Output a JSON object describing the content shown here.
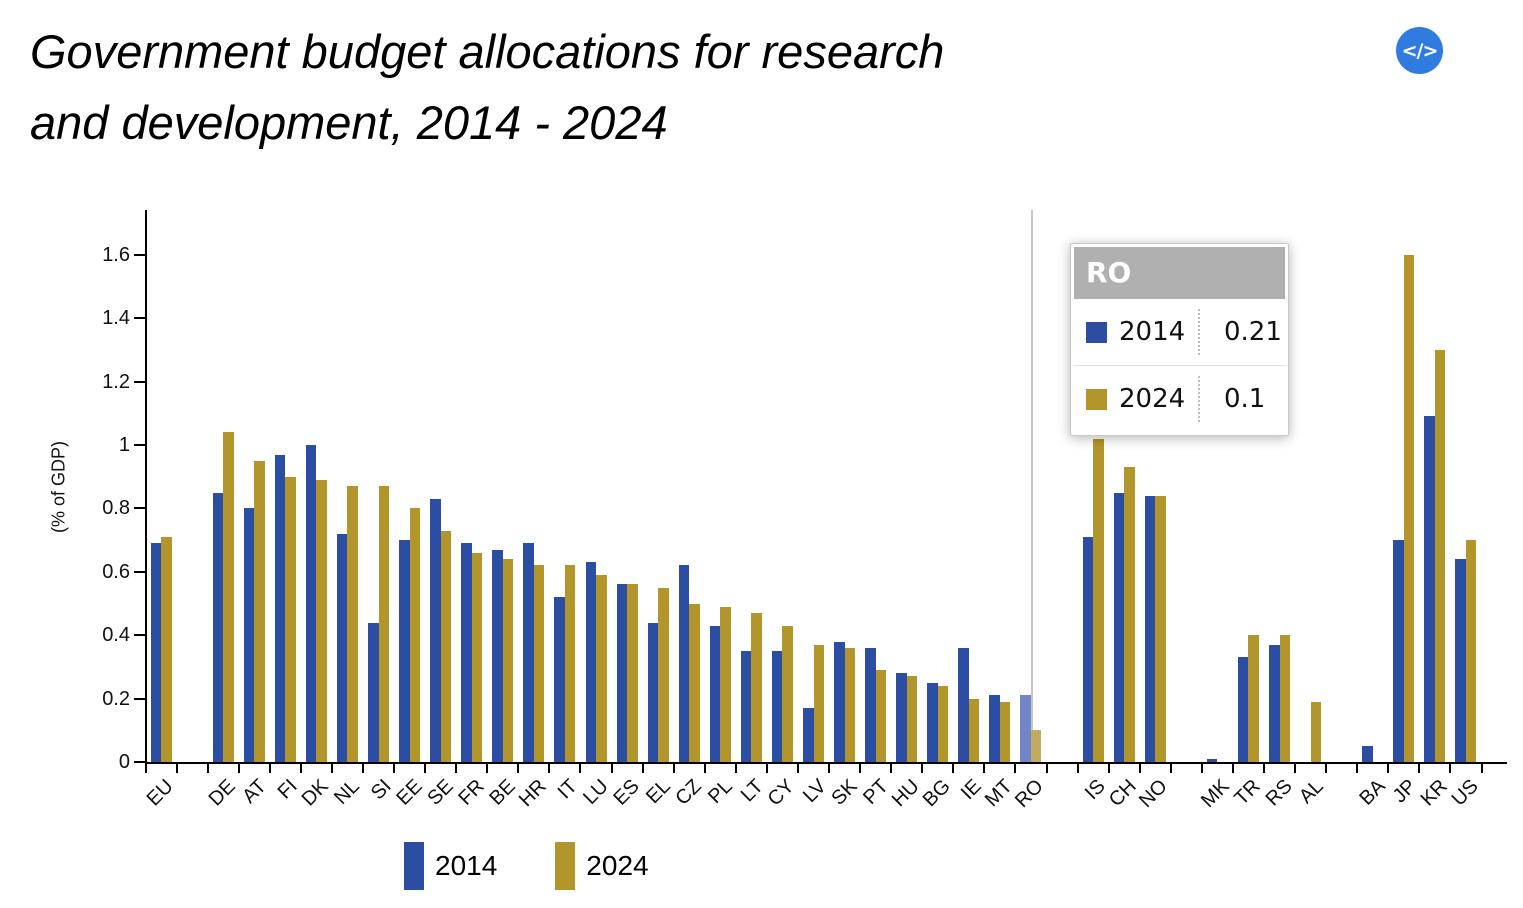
{
  "title_lines": [
    "Government budget allocations for research",
    "and development, 2014 - 2024"
  ],
  "embed_button": {
    "icon_label": "</>"
  },
  "chart_data": {
    "type": "bar",
    "title": "Government budget allocations for research and development, 2014 - 2024",
    "xlabel": "",
    "ylabel": "(% of GDP)",
    "ylim": [
      0,
      1.74
    ],
    "yticks": [
      0,
      0.2,
      0.4,
      0.6,
      0.8,
      1,
      1.2,
      1.4,
      1.6
    ],
    "grid": false,
    "legend_position": "bottom",
    "series": [
      {
        "name": "2014",
        "color": "#2b4ea3"
      },
      {
        "name": "2024",
        "color": "#b2962c"
      }
    ],
    "groups": [
      [
        "EU"
      ],
      [
        "DE",
        "AT",
        "FI",
        "DK",
        "NL",
        "SI",
        "EE",
        "SE",
        "FR",
        "BE",
        "HR",
        "IT",
        "LU",
        "ES",
        "EL",
        "CZ",
        "PL",
        "LT",
        "CY",
        "LV",
        "SK",
        "PT",
        "HU",
        "BG",
        "IE",
        "MT",
        "RO"
      ],
      [
        "IS",
        "CH",
        "NO"
      ],
      [
        "MK",
        "TR",
        "RS",
        "AL"
      ],
      [
        "BA",
        "JP",
        "KR",
        "US"
      ]
    ],
    "values": {
      "EU": [
        0.69,
        0.71
      ],
      "DE": [
        0.85,
        1.04
      ],
      "AT": [
        0.8,
        0.95
      ],
      "FI": [
        0.97,
        0.9
      ],
      "DK": [
        1.0,
        0.89
      ],
      "NL": [
        0.72,
        0.87
      ],
      "SI": [
        0.44,
        0.87
      ],
      "EE": [
        0.7,
        0.8
      ],
      "SE": [
        0.83,
        0.73
      ],
      "FR": [
        0.69,
        0.66
      ],
      "BE": [
        0.67,
        0.64
      ],
      "HR": [
        0.69,
        0.62
      ],
      "IT": [
        0.52,
        0.62
      ],
      "LU": [
        0.63,
        0.59
      ],
      "ES": [
        0.56,
        0.56
      ],
      "EL": [
        0.44,
        0.55
      ],
      "CZ": [
        0.62,
        0.5
      ],
      "PL": [
        0.43,
        0.49
      ],
      "LT": [
        0.35,
        0.47
      ],
      "CY": [
        0.35,
        0.43
      ],
      "LV": [
        0.17,
        0.37
      ],
      "SK": [
        0.38,
        0.36
      ],
      "PT": [
        0.36,
        0.29
      ],
      "HU": [
        0.28,
        0.27
      ],
      "BG": [
        0.25,
        0.24
      ],
      "IE": [
        0.36,
        0.2
      ],
      "MT": [
        0.21,
        0.19
      ],
      "RO": [
        0.21,
        0.1
      ],
      "IS": [
        0.71,
        1.02
      ],
      "CH": [
        0.85,
        0.93
      ],
      "NO": [
        0.84,
        0.84
      ],
      "MK": [
        0.01,
        null
      ],
      "TR": [
        0.33,
        0.4
      ],
      "RS": [
        0.37,
        0.4
      ],
      "AL": [
        null,
        0.19
      ],
      "BA": [
        0.05,
        null
      ],
      "JP": [
        0.7,
        1.6
      ],
      "KR": [
        1.09,
        1.3
      ],
      "US": [
        0.64,
        0.7
      ]
    },
    "highlight": {
      "category": "RO",
      "hover_colors": [
        "#7285c6",
        "#c0ab60"
      ]
    }
  },
  "tooltip": {
    "country": "RO",
    "rows": [
      {
        "label": "2014",
        "value": "0.21",
        "color": "#2b4ea3"
      },
      {
        "label": "2024",
        "value": "0.1",
        "color": "#b2962c"
      }
    ]
  },
  "legend": {
    "items": [
      {
        "label": "2014",
        "color": "#2b4ea3"
      },
      {
        "label": "2024",
        "color": "#b2962c"
      }
    ]
  }
}
